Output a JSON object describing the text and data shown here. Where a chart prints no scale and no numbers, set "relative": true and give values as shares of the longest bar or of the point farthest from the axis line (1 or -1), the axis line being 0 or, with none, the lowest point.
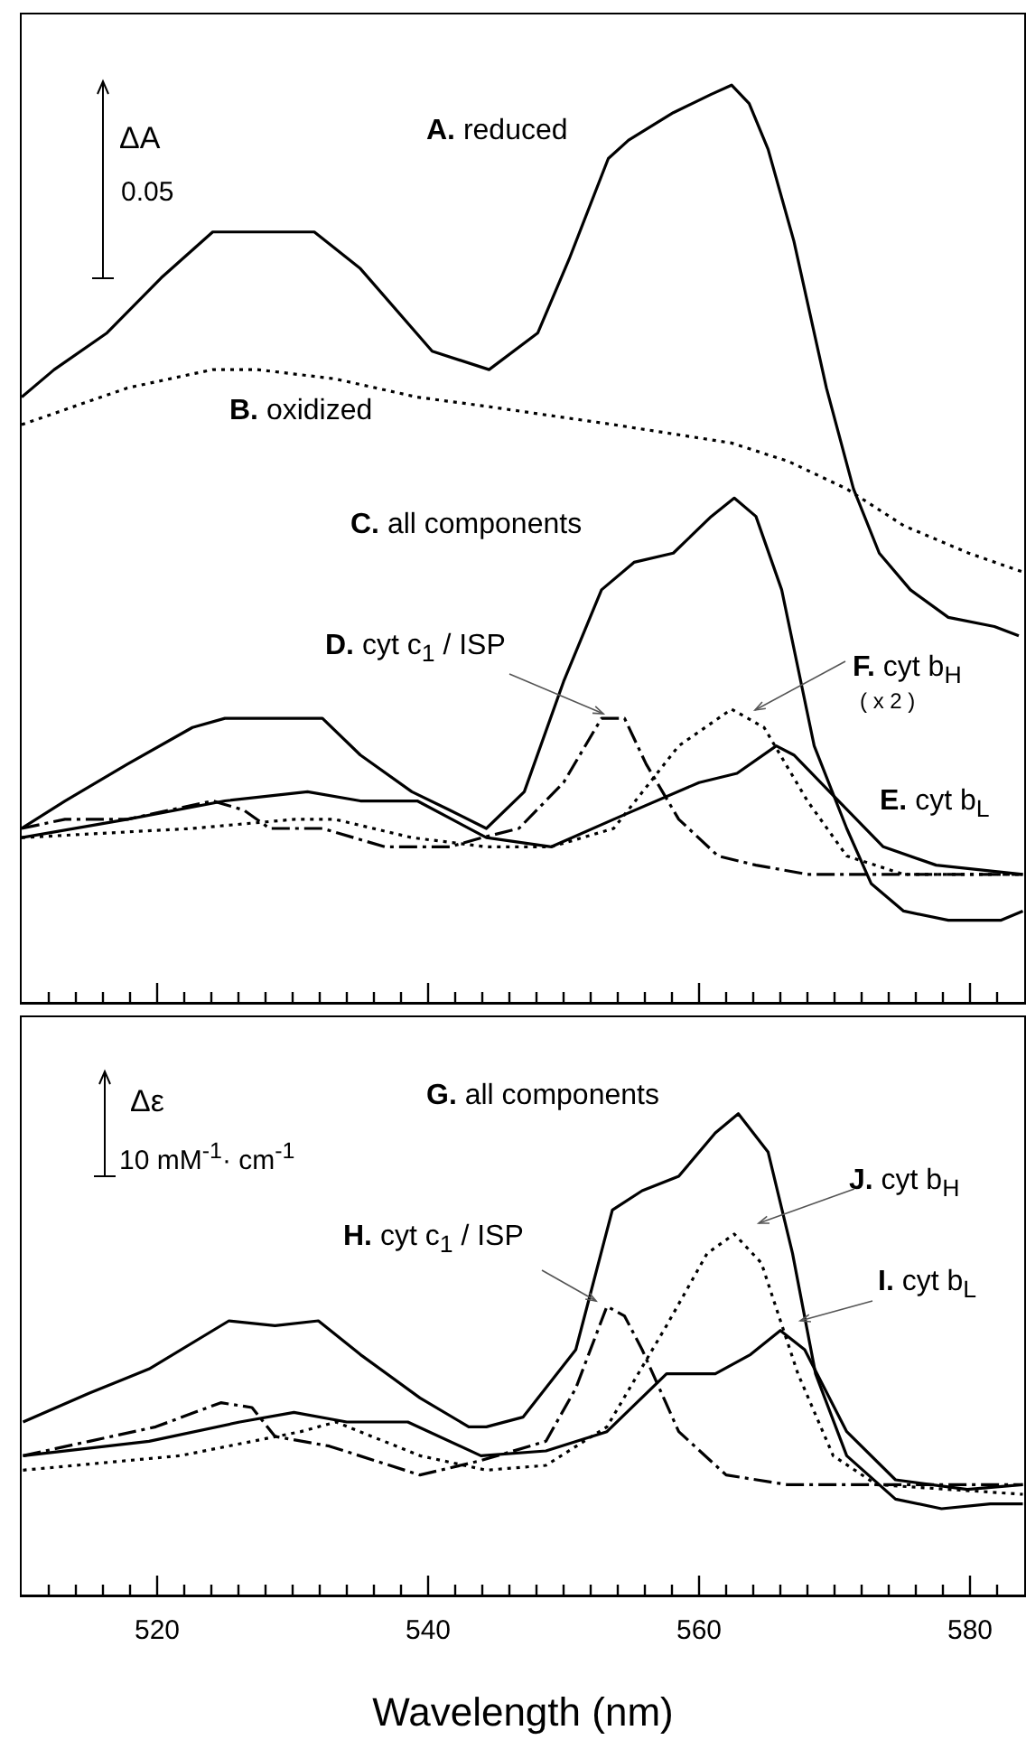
{
  "chart_data": [
    {
      "type": "line",
      "relative": true,
      "xlim": [
        510,
        584
      ],
      "tick_labels": false,
      "xticks": [
        {
          "value": 512,
          "label": null
        },
        {
          "value": 514,
          "label": null
        },
        {
          "value": 516,
          "label": null
        },
        {
          "value": 518,
          "label": null
        },
        520,
        {
          "value": 522,
          "label": null
        },
        {
          "value": 524,
          "label": null
        },
        {
          "value": 526,
          "label": null
        },
        {
          "value": 528,
          "label": null
        },
        {
          "value": 530,
          "label": null
        },
        {
          "value": 532,
          "label": null
        },
        {
          "value": 534,
          "label": null
        },
        {
          "value": 536,
          "label": null
        },
        {
          "value": 538,
          "label": null
        },
        540,
        {
          "value": 542,
          "label": null
        },
        {
          "value": 544,
          "label": null
        },
        {
          "value": 546,
          "label": null
        },
        {
          "value": 548,
          "label": null
        },
        {
          "value": 550,
          "label": null
        },
        {
          "value": 552,
          "label": null
        },
        {
          "value": 554,
          "label": null
        },
        {
          "value": 556,
          "label": null
        },
        {
          "value": 558,
          "label": null
        },
        560,
        {
          "value": 562,
          "label": null
        },
        {
          "value": 564,
          "label": null
        },
        {
          "value": 566,
          "label": null
        },
        {
          "value": 568,
          "label": null
        },
        {
          "value": 570,
          "label": null
        },
        {
          "value": 572,
          "label": null
        },
        {
          "value": 574,
          "label": null
        },
        {
          "value": 576,
          "label": null
        },
        {
          "value": 578,
          "label": null
        },
        580,
        {
          "value": 582,
          "label": null
        }
      ],
      "annotations": [
        "ΔA",
        "0.05",
        "( x 2 )"
      ],
      "series": [
        {
          "name": "A. reduced",
          "color": "#000000",
          "line_style": "solid",
          "x": [
            510.0,
            512.4,
            516.3,
            520.3,
            524.1,
            528.3,
            531.6,
            535.0,
            540.3,
            544.5,
            548.1,
            550.4,
            553.3,
            554.8,
            558.1,
            560.9,
            562.4,
            563.7,
            565.1,
            567.0,
            569.4,
            571.4,
            573.3,
            575.6,
            578.4,
            581.8,
            583.6
          ],
          "values": [
            0.66,
            0.69,
            0.73,
            0.79,
            0.84,
            0.84,
            0.84,
            0.8,
            0.71,
            0.69,
            0.73,
            0.81,
            0.92,
            0.94,
            0.97,
            0.99,
            1.0,
            0.98,
            0.93,
            0.83,
            0.67,
            0.56,
            0.49,
            0.45,
            0.42,
            0.41,
            0.4
          ]
        },
        {
          "name": "B. oxidized",
          "color": "#000000",
          "line_style": "dotted",
          "x": [
            510.0,
            517.8,
            524.1,
            527.4,
            533.1,
            539.2,
            544.3,
            553.7,
            562.4,
            566.6,
            570.9,
            575.1,
            579.9,
            583.8
          ],
          "values": [
            0.63,
            0.67,
            0.69,
            0.69,
            0.68,
            0.66,
            0.65,
            0.63,
            0.61,
            0.59,
            0.56,
            0.52,
            0.49,
            0.47
          ]
        },
        {
          "name": "C. all components",
          "color": "#000000",
          "line_style": "solid",
          "x": [
            510.0,
            513.2,
            517.8,
            522.6,
            525.0,
            528.3,
            532.2,
            535.0,
            538.8,
            541.6,
            544.3,
            547.1,
            550.0,
            552.8,
            555.2,
            558.1,
            560.9,
            562.6,
            564.2,
            566.1,
            568.5,
            570.9,
            572.7,
            575.1,
            578.4,
            582.3,
            583.9
          ],
          "values": [
            0.19,
            0.22,
            0.26,
            0.3,
            0.31,
            0.31,
            0.31,
            0.27,
            0.23,
            0.21,
            0.19,
            0.23,
            0.35,
            0.45,
            0.48,
            0.49,
            0.53,
            0.55,
            0.53,
            0.45,
            0.28,
            0.19,
            0.13,
            0.1,
            0.09,
            0.09,
            0.1
          ]
        },
        {
          "name": "D. cyt c$_{1}$ / ISP",
          "color": "#000000",
          "line_style": "dashed",
          "x": [
            510.0,
            513.2,
            517.8,
            524.1,
            526.4,
            528.3,
            532.2,
            536.8,
            541.6,
            544.0,
            546.7,
            550.0,
            552.8,
            554.5,
            556.1,
            558.5,
            561.4,
            564.2,
            568.0,
            583.9
          ],
          "values": [
            0.19,
            0.2,
            0.2,
            0.22,
            0.21,
            0.19,
            0.19,
            0.17,
            0.17,
            0.18,
            0.19,
            0.24,
            0.31,
            0.31,
            0.26,
            0.2,
            0.16,
            0.15,
            0.14,
            0.14
          ]
        },
        {
          "name": "E. cyt b$_{L}$",
          "color": "#000000",
          "line_style": "solid",
          "x": [
            510.0,
            517.8,
            525.0,
            531.1,
            535.0,
            539.2,
            544.3,
            549.1,
            553.7,
            560.0,
            562.8,
            565.7,
            567.0,
            570.3,
            573.6,
            577.5,
            583.9
          ],
          "values": [
            0.18,
            0.2,
            0.22,
            0.23,
            0.22,
            0.22,
            0.18,
            0.17,
            0.2,
            0.24,
            0.25,
            0.28,
            0.27,
            0.22,
            0.17,
            0.15,
            0.14
          ]
        },
        {
          "name": "F. cyt b$_{H}$",
          "color": "#000000",
          "line_style": "dotted",
          "x": [
            510.0,
            522.6,
            530.2,
            533.1,
            538.8,
            544.3,
            549.1,
            553.7,
            558.5,
            562.4,
            564.8,
            568.0,
            570.9,
            575.1,
            583.9
          ],
          "values": [
            0.18,
            0.19,
            0.2,
            0.2,
            0.18,
            0.17,
            0.17,
            0.19,
            0.28,
            0.32,
            0.3,
            0.22,
            0.16,
            0.14,
            0.14
          ]
        }
      ]
    },
    {
      "type": "line",
      "relative": true,
      "xlim": [
        510,
        584
      ],
      "tick_labels": "x",
      "xlabel": "Wavelength (nm)",
      "xticks": [
        {
          "value": 512,
          "label": null
        },
        {
          "value": 514,
          "label": null
        },
        {
          "value": 516,
          "label": null
        },
        {
          "value": 518,
          "label": null
        },
        520,
        {
          "value": 522,
          "label": null
        },
        {
          "value": 524,
          "label": null
        },
        {
          "value": 526,
          "label": null
        },
        {
          "value": 528,
          "label": null
        },
        {
          "value": 530,
          "label": null
        },
        {
          "value": 532,
          "label": null
        },
        {
          "value": 534,
          "label": null
        },
        {
          "value": 536,
          "label": null
        },
        {
          "value": 538,
          "label": null
        },
        540,
        {
          "value": 542,
          "label": null
        },
        {
          "value": 544,
          "label": null
        },
        {
          "value": 546,
          "label": null
        },
        {
          "value": 548,
          "label": null
        },
        {
          "value": 550,
          "label": null
        },
        {
          "value": 552,
          "label": null
        },
        {
          "value": 554,
          "label": null
        },
        {
          "value": 556,
          "label": null
        },
        {
          "value": 558,
          "label": null
        },
        560,
        {
          "value": 562,
          "label": null
        },
        {
          "value": 564,
          "label": null
        },
        {
          "value": 566,
          "label": null
        },
        {
          "value": 568,
          "label": null
        },
        {
          "value": 570,
          "label": null
        },
        {
          "value": 572,
          "label": null
        },
        {
          "value": 574,
          "label": null
        },
        {
          "value": 576,
          "label": null
        },
        {
          "value": 578,
          "label": null
        },
        580,
        {
          "value": 582,
          "label": null
        }
      ],
      "annotations": [
        "Δε",
        "10 mM$^{-1}$· cm$^{-1}$"
      ],
      "series": [
        {
          "name": "G. all components",
          "color": "#000000",
          "line_style": "solid",
          "x": [
            510.1,
            515.0,
            519.4,
            525.3,
            528.7,
            531.9,
            535.0,
            539.4,
            543.0,
            544.3,
            547.0,
            550.9,
            553.6,
            555.8,
            558.5,
            561.2,
            562.9,
            565.1,
            566.9,
            568.6,
            570.9,
            574.5,
            577.9,
            581.5,
            583.9
          ],
          "values": [
            0.36,
            0.42,
            0.47,
            0.57,
            0.56,
            0.57,
            0.5,
            0.41,
            0.35,
            0.35,
            0.37,
            0.51,
            0.8,
            0.84,
            0.87,
            0.96,
            1.0,
            0.92,
            0.71,
            0.46,
            0.29,
            0.2,
            0.18,
            0.19,
            0.19
          ]
        },
        {
          "name": "H. cyt c$_{1}$ / ISP",
          "color": "#000000",
          "line_style": "dashed",
          "x": [
            510.1,
            515.0,
            519.9,
            524.7,
            527.0,
            528.7,
            532.7,
            539.4,
            543.9,
            548.7,
            550.9,
            553.2,
            554.5,
            555.8,
            558.5,
            562.0,
            566.5,
            570.9,
            583.9
          ],
          "values": [
            0.29,
            0.32,
            0.35,
            0.4,
            0.39,
            0.33,
            0.31,
            0.25,
            0.28,
            0.32,
            0.43,
            0.6,
            0.58,
            0.51,
            0.34,
            0.25,
            0.23,
            0.23,
            0.23
          ]
        },
        {
          "name": "I. cyt b$_{L}$",
          "color": "#000000",
          "line_style": "solid",
          "x": [
            510.1,
            519.4,
            526.1,
            530.1,
            534.0,
            538.5,
            543.9,
            548.7,
            553.2,
            557.6,
            561.2,
            563.8,
            566.0,
            567.8,
            570.9,
            574.5,
            579.8,
            583.9
          ],
          "values": [
            0.29,
            0.32,
            0.36,
            0.38,
            0.36,
            0.36,
            0.29,
            0.3,
            0.34,
            0.46,
            0.46,
            0.5,
            0.55,
            0.51,
            0.34,
            0.24,
            0.22,
            0.23
          ]
        },
        {
          "name": "J. cyt b$_{H}$",
          "color": "#000000",
          "line_style": "dotted",
          "x": [
            510.1,
            521.7,
            530.6,
            533.2,
            539.4,
            544.3,
            548.7,
            553.2,
            557.6,
            560.6,
            562.6,
            564.6,
            567.3,
            569.9,
            573.1,
            583.9
          ],
          "values": [
            0.26,
            0.29,
            0.34,
            0.36,
            0.29,
            0.26,
            0.27,
            0.35,
            0.56,
            0.71,
            0.75,
            0.69,
            0.46,
            0.29,
            0.23,
            0.21
          ]
        }
      ]
    }
  ]
}
